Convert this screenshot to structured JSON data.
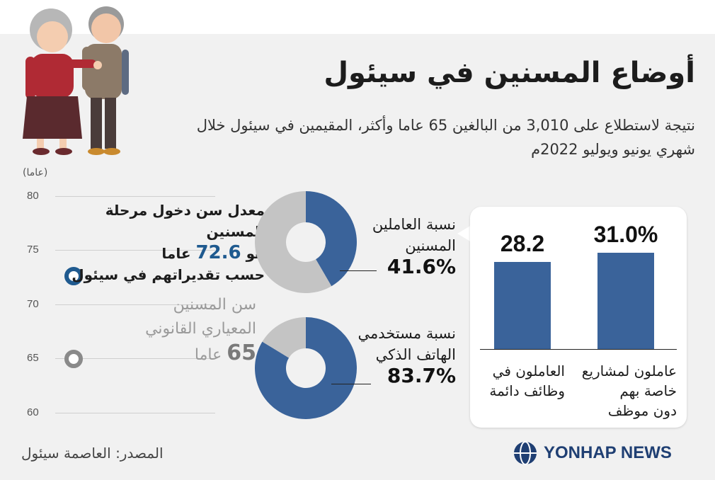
{
  "header": {
    "title": "أوضاع المسنين في سيئول",
    "subtitle": "نتيجة لاستطلاع على 3,010 من البالغين 65 عاما وأكثر، المقيمين في سيئول خلال شهري يونيو ويوليو 2022م"
  },
  "age_axis": {
    "unit_label": "(عاما)",
    "ticks": [
      "80",
      "75",
      "70",
      "65",
      "60"
    ],
    "avg_text_1": "معدل سن دخول مرحلة المسنين",
    "avg_text_2a": "هو",
    "avg_value": "72.6",
    "avg_text_2b": "عاما",
    "avg_text_3": "حسب تقديراتهم في سيئول",
    "legal_text_1": "سن المسنين",
    "legal_text_2": "المعياري القانوني",
    "legal_value": "65",
    "legal_text_3": "عاما"
  },
  "donuts": {
    "working": {
      "label_1": "نسبة العاملين",
      "label_2": "المسنين",
      "value": "41.6%"
    },
    "smartphone": {
      "label_1": "نسبة مستخدمي",
      "label_2": "الهاتف الذكي",
      "value": "83.7%"
    }
  },
  "bars": {
    "left_value": "28.2",
    "right_value": "31.0%",
    "left_label_1": "العاملون في",
    "left_label_2": "وظائف دائمة",
    "right_label_1": "عاملون لمشاريع",
    "right_label_2": "خاصة بهم",
    "right_label_3": "دون موظف"
  },
  "footer": {
    "source": "المصدر: العاصمة سيئول",
    "logo": "YONHAP NEWS"
  },
  "colors": {
    "primary": "#3a639a",
    "gray": "#c4c4c4",
    "avg_marker": "#1f5a8f",
    "legal_marker": "#8a8a8a",
    "background": "#f1f1f1"
  },
  "chart_data": [
    {
      "type": "scatter",
      "title": "",
      "ylabel": "(عاما)",
      "ylim": [
        60,
        80
      ],
      "yticks": [
        80,
        75,
        70,
        65,
        60
      ],
      "points": [
        {
          "name": "معدل سن دخول مرحلة المسنين حسب تقديراتهم في سيئول",
          "y": 72.6
        },
        {
          "name": "سن المسنين المعياري القانوني",
          "y": 65
        }
      ]
    },
    {
      "type": "pie",
      "title": "نسبة العاملين المسنين",
      "slices": [
        {
          "label": "نسبة العاملين المسنين",
          "value": 41.6
        },
        {
          "label": "",
          "value": 58.4
        }
      ]
    },
    {
      "type": "pie",
      "title": "نسبة مستخدمي الهاتف الذكي",
      "slices": [
        {
          "label": "نسبة مستخدمي الهاتف الذكي",
          "value": 83.7
        },
        {
          "label": "",
          "value": 16.3
        }
      ]
    },
    {
      "type": "bar",
      "categories": [
        "العاملون في وظائف دائمة",
        "عاملون لمشاريع خاصة بهم دون موظف"
      ],
      "values": [
        28.2,
        31.0
      ],
      "unit": "%"
    }
  ]
}
